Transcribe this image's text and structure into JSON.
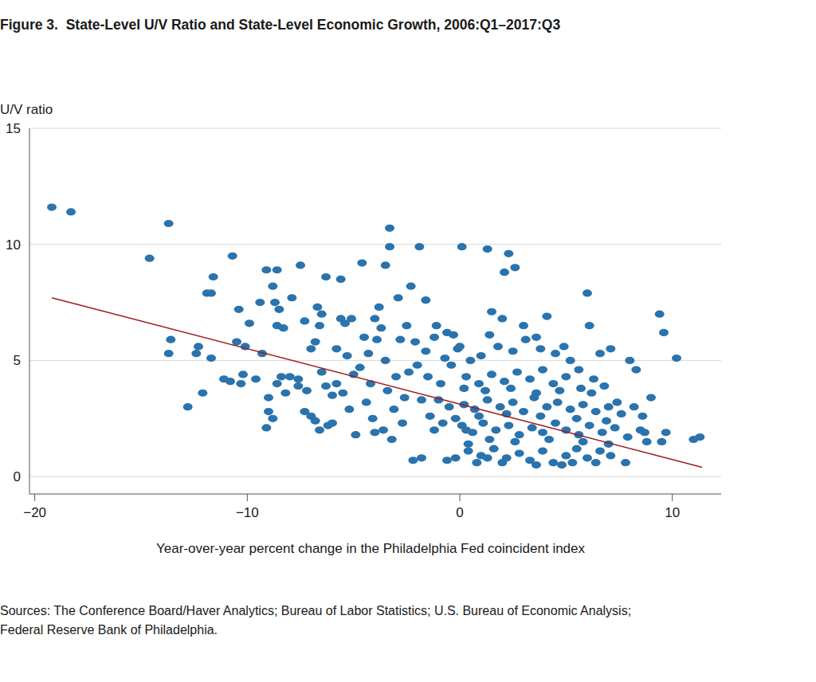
{
  "chart_data": {
    "type": "scatter",
    "title": "Figure 3.  State-Level U/V Ratio and State-Level Economic Growth, 2006:Q1–2017:Q3",
    "ylabel": "U/V ratio",
    "xlabel": "Year-over-year percent change in the Philadelphia Fed coincident index",
    "source": [
      "Sources: The Conference Board/Haver Analytics; Bureau of Labor Statistics; U.S. Bureau of Economic Analysis;",
      "Federal Reserve Bank of Philadelphia."
    ],
    "xlim": [
      -20.25,
      12.3
    ],
    "ylim": [
      -0.75,
      15
    ],
    "xticks": [
      {
        "value": -20,
        "label": "−20"
      },
      {
        "value": -10,
        "label": "−10"
      },
      0,
      10
    ],
    "yticks": [
      0,
      5,
      10,
      15
    ],
    "grid": true,
    "series": [
      {
        "type": "scatter",
        "color": "#2a73ad",
        "marker": "circle",
        "x": [
          -19.2,
          -18.3,
          -13.7,
          -14.6,
          -10.7,
          -13.6,
          -13.7,
          -12.8,
          -12.4,
          -12.3,
          -11.9,
          -11.7,
          -11.6,
          -11.7,
          -12.1,
          -11.1,
          -10.8,
          -10.3,
          -10.5,
          -10.1,
          -10.4,
          -9.9,
          -10.2,
          -9.6,
          -9.4,
          -9.3,
          -9.1,
          -8.6,
          -8.8,
          -8.7,
          -8.5,
          -8.3,
          -8.6,
          -9.0,
          -8.8,
          -9.1,
          -9.0,
          -8.6,
          -8.4,
          -8.0,
          -7.6,
          -7.9,
          -7.5,
          -7.3,
          -7.0,
          -7.2,
          -7.0,
          -7.3,
          -6.8,
          -6.7,
          -6.5,
          -6.6,
          -6.8,
          -6.5,
          -6.3,
          -6.6,
          -6.2,
          -6.0,
          -6.3,
          -5.6,
          -5.8,
          -5.6,
          -5.3,
          -5.0,
          -5.5,
          -5.2,
          -4.9,
          -5.1,
          -4.6,
          -4.5,
          -4.3,
          -4.2,
          -4.4,
          -4.1,
          -4.0,
          -3.8,
          -3.7,
          -3.5,
          -3.3,
          -3.3,
          -3.5,
          -3.4,
          -3.6,
          -3.2,
          -3.0,
          -2.9,
          -2.7,
          -2.6,
          -2.5,
          -2.3,
          -2.1,
          -1.9,
          -2.0,
          -1.8,
          -2.2,
          -1.8,
          -1.6,
          -1.5,
          -1.4,
          -1.2,
          -1.0,
          -0.8,
          -0.7,
          -0.6,
          -0.4,
          -0.3,
          -0.2,
          0.1,
          0.0,
          0.2,
          0.3,
          0.4,
          1.3,
          2.3,
          2.1,
          2.6,
          6.0,
          9.4,
          9.6,
          10.2,
          6.1,
          6.6,
          7.1,
          8.0,
          8.3,
          9.0,
          9.7,
          9.5,
          11.0,
          11.3,
          8.6,
          8.7,
          7.8,
          6.3,
          1.0,
          1.8,
          2.5,
          3.1,
          3.8,
          4.5,
          5.2,
          0.5,
          -0.1,
          1.4,
          2.0,
          1.5,
          3.0,
          4.1,
          3.6,
          4.9,
          5.6,
          0.3,
          0.9,
          1.5,
          2.1,
          2.7,
          3.3,
          3.9,
          4.4,
          5.0,
          5.7,
          6.2,
          6.8,
          7.4,
          1.2,
          2.4,
          3.6,
          4.7,
          0.2,
          0.7,
          1.3,
          1.9,
          2.5,
          3.0,
          3.5,
          4.1,
          4.6,
          5.2,
          5.8,
          6.4,
          7.0,
          7.6,
          8.2,
          0.9,
          2.2,
          3.8,
          5.5,
          6.9,
          0.1,
          0.6,
          1.1,
          1.7,
          2.3,
          2.8,
          3.4,
          3.9,
          4.5,
          5.0,
          5.6,
          6.1,
          6.7,
          7.3,
          7.9,
          8.5,
          1.4,
          2.6,
          4.2,
          5.8,
          7.0,
          8.8,
          0.4,
          1.0,
          1.6,
          2.2,
          2.8,
          3.3,
          3.9,
          4.4,
          5.0,
          5.5,
          6.0,
          6.6,
          7.1,
          2.0,
          3.6,
          4.8,
          5.3,
          6.4,
          0.8,
          1.3,
          -1.2,
          -0.9,
          -0.5,
          -0.2,
          -1.6,
          -2.4,
          -2.8,
          -3.1,
          -4.7,
          -5.8,
          -6.0,
          -7.6,
          -8.2,
          -5.4,
          -4.0,
          -3.9,
          -1.1,
          -0.6
        ],
        "values": [
          11.6,
          11.4,
          10.9,
          9.4,
          9.5,
          5.9,
          5.3,
          3.0,
          5.3,
          5.6,
          7.9,
          7.9,
          8.6,
          5.1,
          3.6,
          4.2,
          4.1,
          4.0,
          5.8,
          5.6,
          7.2,
          6.6,
          4.4,
          4.2,
          7.5,
          5.3,
          8.9,
          8.9,
          8.2,
          7.5,
          7.2,
          6.4,
          6.5,
          2.8,
          2.5,
          2.1,
          3.4,
          4.0,
          4.3,
          4.3,
          4.2,
          7.7,
          9.1,
          6.7,
          5.5,
          3.7,
          2.6,
          2.8,
          2.4,
          7.3,
          7.0,
          6.5,
          5.8,
          4.5,
          3.9,
          2.0,
          2.2,
          2.3,
          8.6,
          8.5,
          5.5,
          6.8,
          5.2,
          4.4,
          3.6,
          2.9,
          1.8,
          6.8,
          9.2,
          6.0,
          5.3,
          4.0,
          3.2,
          2.5,
          1.9,
          7.3,
          6.4,
          9.1,
          10.7,
          9.9,
          5.0,
          3.7,
          2.0,
          1.6,
          4.3,
          7.7,
          2.3,
          3.4,
          6.5,
          8.2,
          5.8,
          9.9,
          4.8,
          3.3,
          0.7,
          0.8,
          7.6,
          4.3,
          2.6,
          6.0,
          3.3,
          2.3,
          5.1,
          0.7,
          4.8,
          6.1,
          0.8,
          9.9,
          5.6,
          3.8,
          2.0,
          1.4,
          9.8,
          9.6,
          8.8,
          9.0,
          7.9,
          7.0,
          6.2,
          5.1,
          6.5,
          5.3,
          5.5,
          5.0,
          4.6,
          3.4,
          1.9,
          1.5,
          1.6,
          1.7,
          2.6,
          1.9,
          0.6,
          4.2,
          5.2,
          5.6,
          5.4,
          5.9,
          5.5,
          5.3,
          5.0,
          5.0,
          5.5,
          6.1,
          6.8,
          7.1,
          6.5,
          6.9,
          6.0,
          5.6,
          4.6,
          4.3,
          4.0,
          4.4,
          4.1,
          4.5,
          4.2,
          4.6,
          4.0,
          4.3,
          3.8,
          3.6,
          3.9,
          3.2,
          3.7,
          3.8,
          3.6,
          3.7,
          3.1,
          2.9,
          3.3,
          3.0,
          3.2,
          2.8,
          3.4,
          3.0,
          3.2,
          2.9,
          3.1,
          2.8,
          3.0,
          2.7,
          3.0,
          2.6,
          2.7,
          2.6,
          2.5,
          2.4,
          2.2,
          1.9,
          2.3,
          2.0,
          2.2,
          1.8,
          2.1,
          1.9,
          2.3,
          2.0,
          1.8,
          2.2,
          1.9,
          2.1,
          1.7,
          2.0,
          1.6,
          1.5,
          1.6,
          1.5,
          1.4,
          1.5,
          1.1,
          0.9,
          1.2,
          0.8,
          1.0,
          0.7,
          1.1,
          0.6,
          0.9,
          1.2,
          0.8,
          1.1,
          0.9,
          0.6,
          0.5,
          0.5,
          0.6,
          0.6,
          0.6,
          0.8,
          2.0,
          4.0,
          3.0,
          2.5,
          5.4,
          4.5,
          5.9,
          2.9,
          4.7,
          4.0,
          3.5,
          3.9,
          3.6,
          6.6,
          6.8,
          5.9,
          6.5,
          6.2
        ]
      },
      {
        "type": "line",
        "color": "#a01c20",
        "line_style": "solid",
        "x": [
          -19.2,
          11.4
        ],
        "values": [
          7.7,
          0.4
        ]
      }
    ]
  }
}
